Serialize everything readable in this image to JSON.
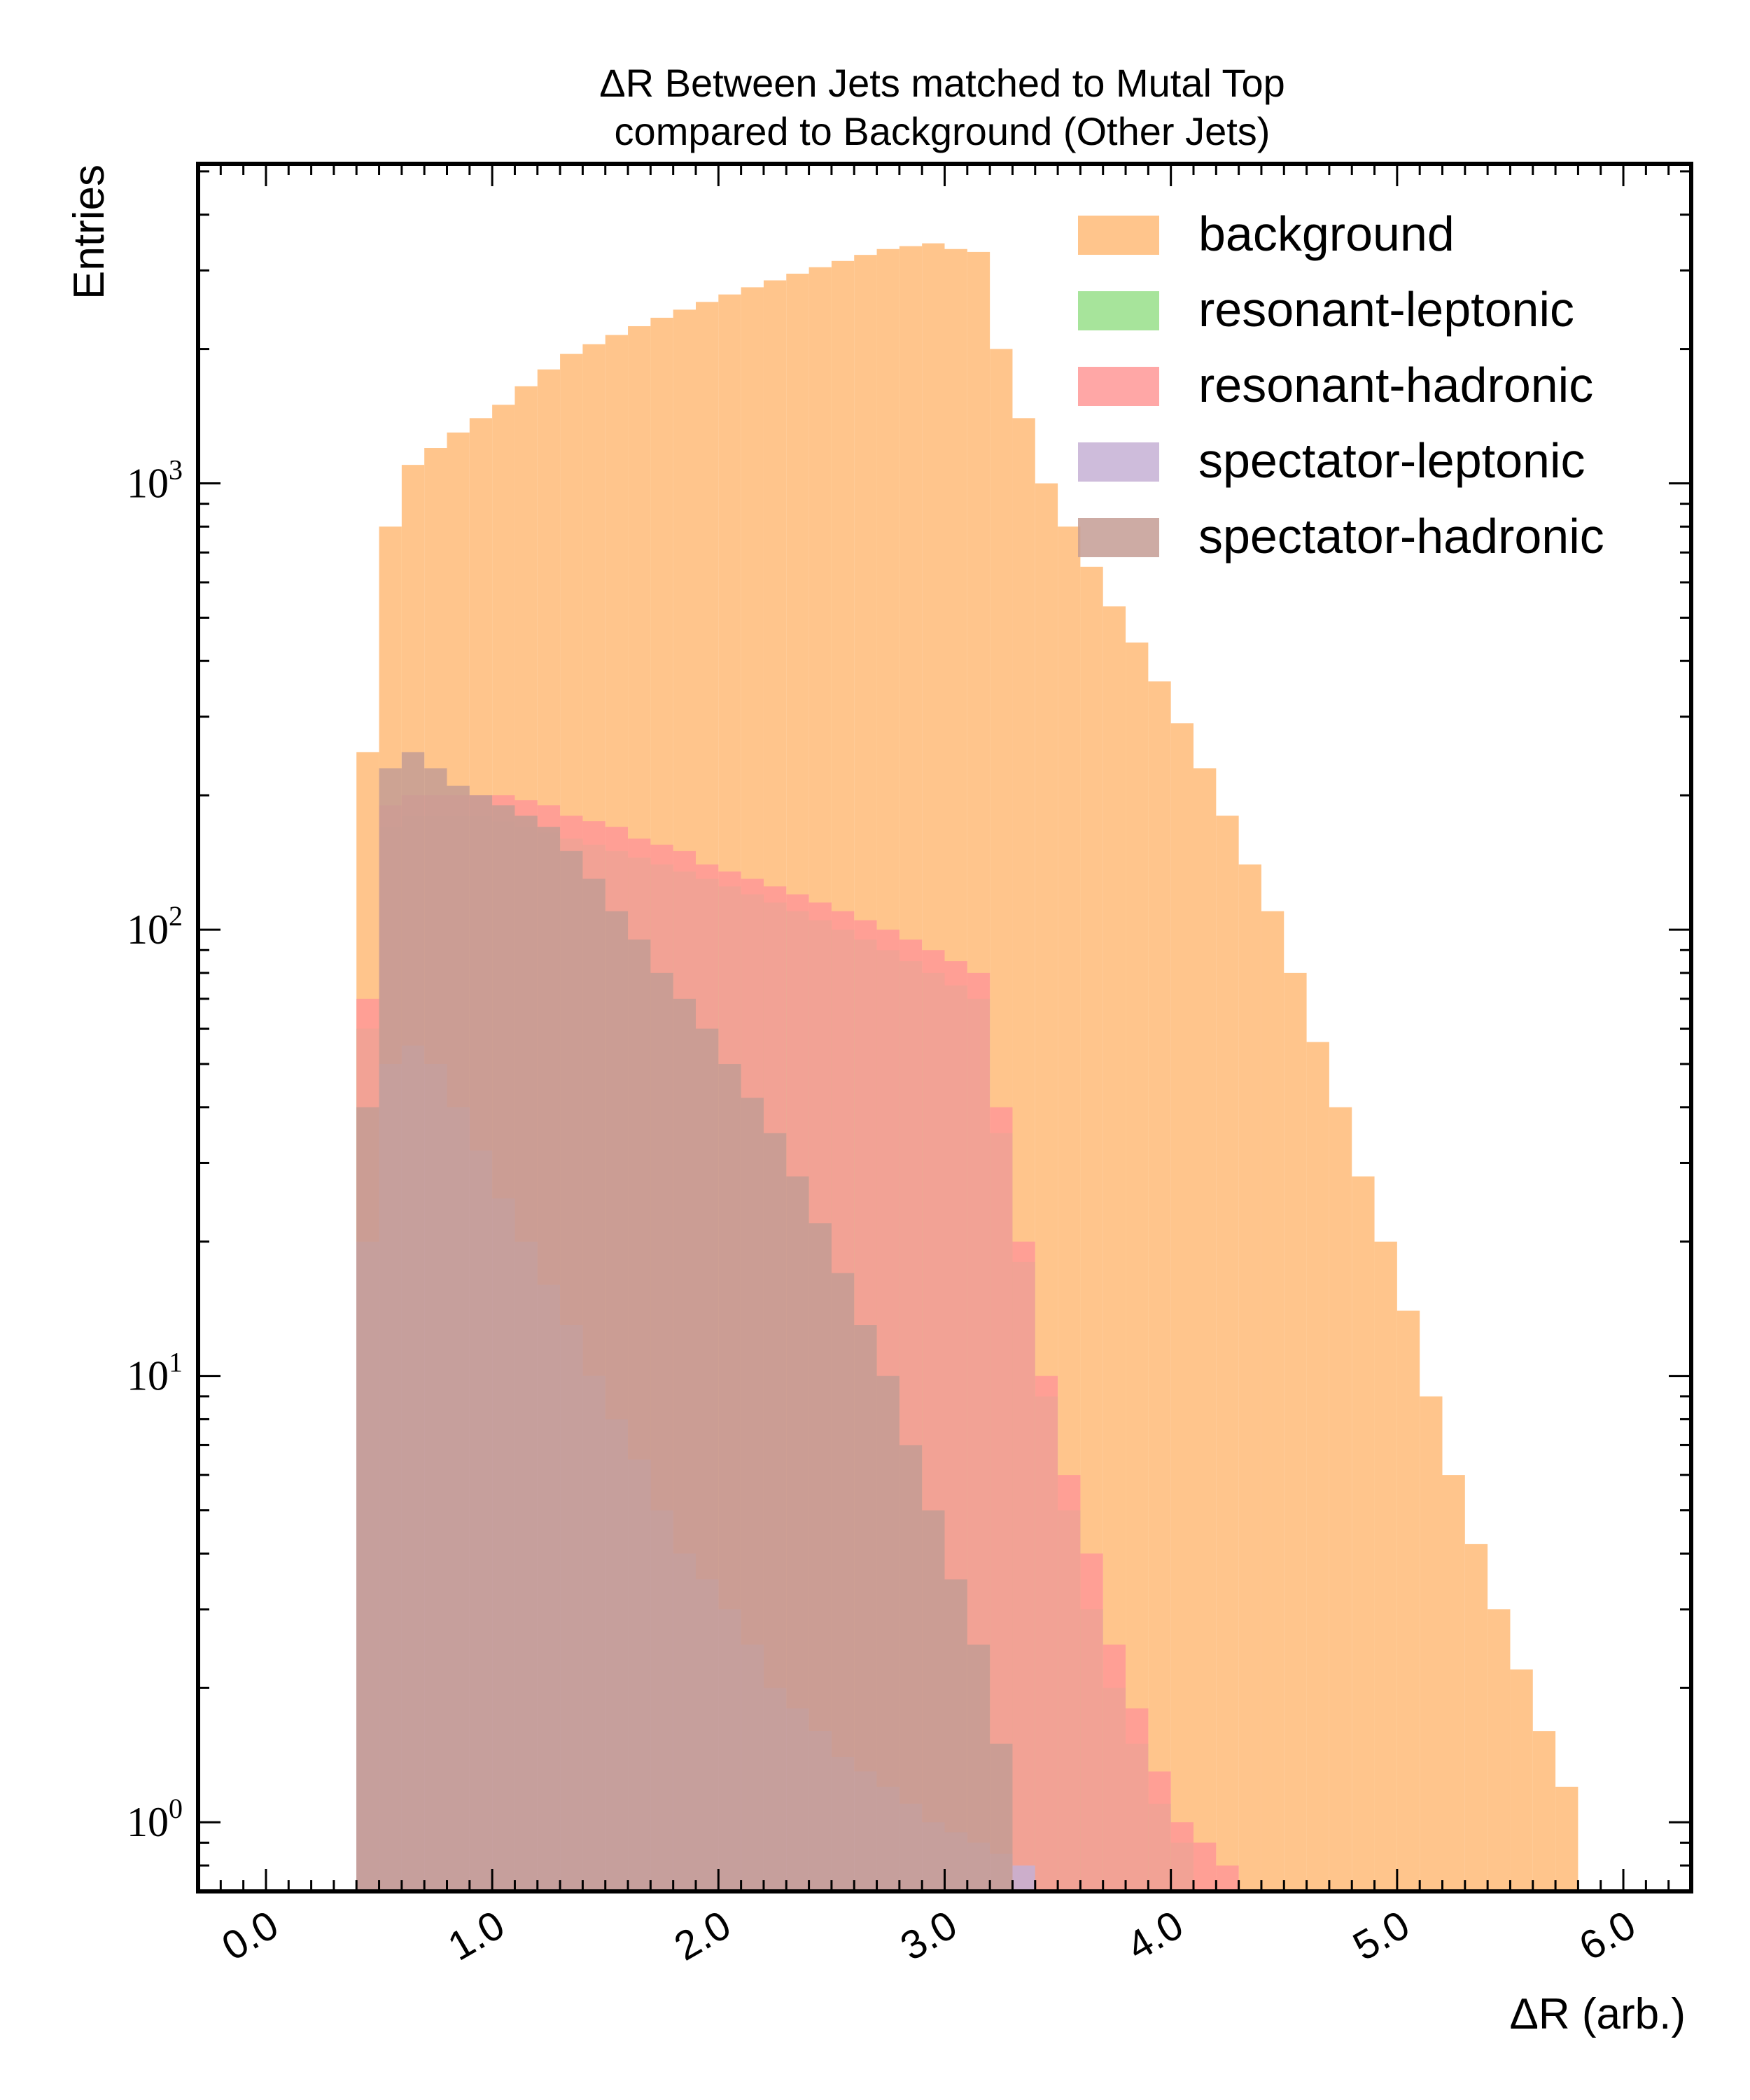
{
  "chart_data": {
    "type": "histogram",
    "title": [
      "ΔR Between Jets matched to Mutal Top",
      "compared to Background (Other Jets)"
    ],
    "xlabel": "ΔR (arb.)",
    "ylabel": "Entries",
    "xlim": [
      -0.3,
      6.3
    ],
    "ylim": [
      0.7,
      5200
    ],
    "yscale": "log",
    "x_ticks": [
      0.0,
      1.0,
      2.0,
      3.0,
      4.0,
      5.0,
      6.0
    ],
    "x_tick_labels": [
      "0.0",
      "1.0",
      "2.0",
      "3.0",
      "4.0",
      "5.0",
      "6.0"
    ],
    "y_ticks": [
      1,
      10,
      100,
      1000
    ],
    "y_tick_labels": [
      {
        "base": "10",
        "exp": "0"
      },
      {
        "base": "10",
        "exp": "1"
      },
      {
        "base": "10",
        "exp": "2"
      },
      {
        "base": "10",
        "exp": "3"
      }
    ],
    "legend_position": "top-right",
    "bin_width": 0.1,
    "series": [
      {
        "name": "background",
        "color": "#ffbb78",
        "x": [
          0.4,
          0.5,
          0.6,
          0.7,
          0.8,
          0.9,
          1.0,
          1.1,
          1.2,
          1.3,
          1.4,
          1.5,
          1.6,
          1.7,
          1.8,
          1.9,
          2.0,
          2.1,
          2.2,
          2.3,
          2.4,
          2.5,
          2.6,
          2.7,
          2.8,
          2.9,
          3.0,
          3.1,
          3.2,
          3.3,
          3.4,
          3.5,
          3.6,
          3.7,
          3.8,
          3.9,
          4.0,
          4.1,
          4.2,
          4.3,
          4.4,
          4.5,
          4.6,
          4.7,
          4.8,
          4.9,
          5.0,
          5.1,
          5.2,
          5.3,
          5.4,
          5.5,
          5.6,
          5.7
        ],
        "values": [
          250,
          800,
          1100,
          1200,
          1300,
          1400,
          1500,
          1650,
          1800,
          1950,
          2050,
          2150,
          2250,
          2350,
          2450,
          2550,
          2650,
          2750,
          2850,
          2950,
          3050,
          3150,
          3250,
          3350,
          3400,
          3450,
          3350,
          3300,
          2000,
          1400,
          1000,
          800,
          650,
          530,
          440,
          360,
          290,
          230,
          180,
          140,
          110,
          80,
          56,
          40,
          28,
          20,
          14,
          9,
          6,
          4.2,
          3,
          2.2,
          1.6,
          1.2
        ]
      },
      {
        "name": "resonant-leptonic",
        "color": "#98df8a",
        "x": [
          0.4,
          0.5,
          0.6,
          0.7,
          0.8,
          0.9,
          1.0,
          1.1,
          1.2,
          1.3,
          1.4,
          1.5,
          1.6,
          1.7,
          1.8,
          1.9,
          2.0,
          2.1,
          2.2,
          2.3,
          2.4,
          2.5,
          2.6,
          2.7,
          2.8,
          2.9,
          3.0,
          3.1,
          3.2,
          3.3,
          3.4,
          3.5,
          3.6,
          3.7,
          3.8,
          3.9,
          4.0
        ],
        "values": [
          60,
          170,
          180,
          180,
          180,
          180,
          175,
          170,
          165,
          160,
          155,
          150,
          145,
          140,
          135,
          130,
          125,
          120,
          115,
          110,
          105,
          100,
          95,
          90,
          85,
          80,
          75,
          70,
          35,
          18,
          9,
          5,
          3,
          2,
          1.5,
          1.1,
          0.9
        ]
      },
      {
        "name": "resonant-hadronic",
        "color": "#ff9896",
        "x": [
          0.4,
          0.5,
          0.6,
          0.7,
          0.8,
          0.9,
          1.0,
          1.1,
          1.2,
          1.3,
          1.4,
          1.5,
          1.6,
          1.7,
          1.8,
          1.9,
          2.0,
          2.1,
          2.2,
          2.3,
          2.4,
          2.5,
          2.6,
          2.7,
          2.8,
          2.9,
          3.0,
          3.1,
          3.2,
          3.3,
          3.4,
          3.5,
          3.6,
          3.7,
          3.8,
          3.9,
          4.0,
          4.1,
          4.2
        ],
        "values": [
          70,
          190,
          200,
          200,
          200,
          200,
          200,
          195,
          190,
          180,
          175,
          170,
          160,
          155,
          150,
          140,
          135,
          130,
          125,
          120,
          115,
          110,
          105,
          100,
          95,
          90,
          85,
          80,
          40,
          20,
          10,
          6,
          4,
          2.5,
          1.8,
          1.3,
          1,
          0.9,
          0.8
        ]
      },
      {
        "name": "spectator-leptonic",
        "color": "#c5b0d5",
        "x": [
          0.4,
          0.5,
          0.6,
          0.7,
          0.8,
          0.9,
          1.0,
          1.1,
          1.2,
          1.3,
          1.4,
          1.5,
          1.6,
          1.7,
          1.8,
          1.9,
          2.0,
          2.1,
          2.2,
          2.3,
          2.4,
          2.5,
          2.6,
          2.7,
          2.8,
          2.9,
          3.0,
          3.1,
          3.2,
          3.3
        ],
        "values": [
          20,
          50,
          55,
          50,
          40,
          32,
          25,
          20,
          16,
          13,
          10,
          8,
          6.5,
          5,
          4,
          3.5,
          3,
          2.5,
          2,
          1.8,
          1.6,
          1.4,
          1.3,
          1.2,
          1.1,
          1,
          0.95,
          0.9,
          0.85,
          0.8
        ]
      },
      {
        "name": "spectator-hadronic",
        "color": "#c49c94",
        "x": [
          0.4,
          0.5,
          0.6,
          0.7,
          0.8,
          0.9,
          1.0,
          1.1,
          1.2,
          1.3,
          1.4,
          1.5,
          1.6,
          1.7,
          1.8,
          1.9,
          2.0,
          2.1,
          2.2,
          2.3,
          2.4,
          2.5,
          2.6,
          2.7,
          2.8,
          2.9,
          3.0,
          3.1,
          3.2
        ],
        "values": [
          40,
          230,
          250,
          230,
          210,
          200,
          190,
          180,
          170,
          150,
          130,
          110,
          95,
          80,
          70,
          60,
          50,
          42,
          35,
          28,
          22,
          17,
          13,
          10,
          7,
          5,
          3.5,
          2.5,
          1.5
        ]
      }
    ]
  }
}
